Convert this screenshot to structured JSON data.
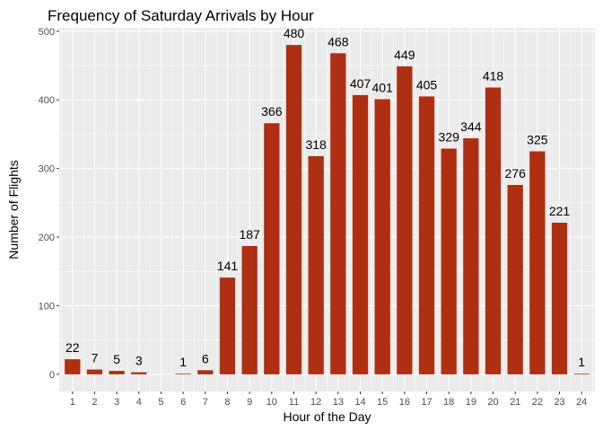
{
  "chart_data": {
    "type": "bar",
    "title": "Frequency of Saturday Arrivals by Hour",
    "xlabel": "Hour of the Day",
    "ylabel": "Number of Flights",
    "categories": [
      "1",
      "2",
      "3",
      "4",
      "5",
      "6",
      "7",
      "8",
      "9",
      "10",
      "11",
      "12",
      "13",
      "14",
      "15",
      "16",
      "17",
      "18",
      "19",
      "20",
      "21",
      "22",
      "23",
      "24"
    ],
    "values": [
      22,
      7,
      5,
      3,
      0,
      1,
      6,
      141,
      187,
      366,
      480,
      318,
      468,
      407,
      401,
      449,
      405,
      329,
      344,
      418,
      276,
      325,
      221,
      1
    ],
    "data_labels": [
      "22",
      "7",
      "5",
      "3",
      "",
      "1",
      "6",
      "141",
      "187",
      "366",
      "480",
      "318",
      "468",
      "407",
      "401",
      "449",
      "405",
      "329",
      "344",
      "418",
      "276",
      "325",
      "221",
      "1"
    ],
    "ylim": [
      -25,
      505
    ],
    "yticks": [
      0,
      100,
      200,
      300,
      400,
      500
    ],
    "ytick_labels": [
      "0",
      "100",
      "200",
      "300",
      "400",
      "500"
    ],
    "grid": true,
    "bar_color": "#ae2f12",
    "panel_color": "#ebebeb",
    "grid_color": "#ffffff"
  }
}
